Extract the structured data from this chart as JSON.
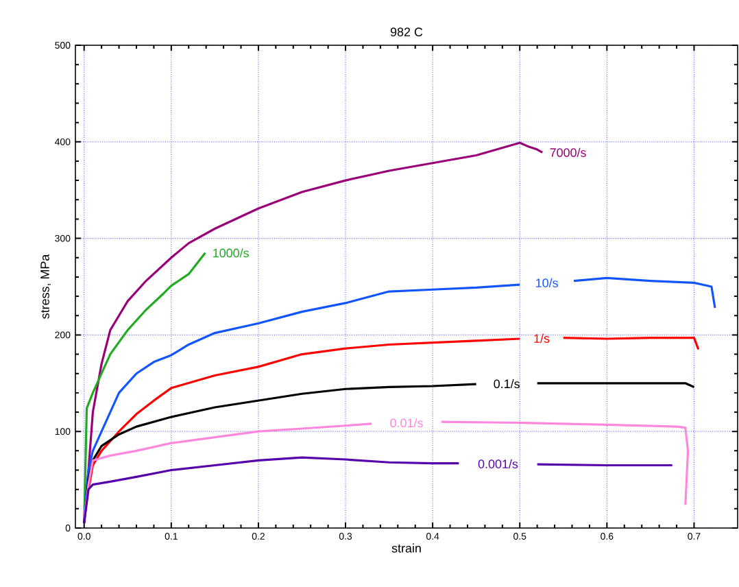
{
  "chart_data": {
    "type": "line",
    "title": "982 C",
    "xlabel": "strain",
    "ylabel": "stress, MPa",
    "xlim": [
      -0.01,
      0.75
    ],
    "ylim": [
      0,
      500
    ],
    "xticks": [
      {
        "value": 0,
        "label": "0.0"
      },
      0.1,
      0.2,
      0.3,
      0.4,
      0.5,
      0.6,
      0.7
    ],
    "yticks": [
      0,
      100,
      200,
      300,
      400,
      500
    ],
    "grid": true,
    "series": [
      {
        "name": "7000/s",
        "color": "#990077",
        "x": [
          0,
          0.005,
          0.01,
          0.02,
          0.03,
          0.04,
          0.05,
          0.07,
          0.1,
          0.12,
          0.15,
          0.2,
          0.25,
          0.3,
          0.35,
          0.4,
          0.45,
          0.5,
          0.51,
          0.52,
          0.526
        ],
        "values": [
          10,
          60,
          120,
          170,
          205,
          220,
          235,
          255,
          280,
          295,
          310,
          331,
          348,
          360,
          370,
          378,
          386,
          399,
          395,
          392,
          389
        ]
      },
      {
        "name": "1000/s",
        "color": "#22aa22",
        "x": [
          0,
          0.003,
          0.01,
          0.02,
          0.03,
          0.05,
          0.07,
          0.09,
          0.1,
          0.12,
          0.139
        ],
        "values": [
          5,
          124,
          140,
          160,
          180,
          205,
          225,
          242,
          251,
          263,
          285
        ]
      },
      {
        "name": "10/s",
        "color": "#1155ff",
        "x": [
          0,
          0.005,
          0.01,
          0.02,
          0.04,
          0.06,
          0.08,
          0.1,
          0.12,
          0.15,
          0.2,
          0.25,
          0.3,
          0.35,
          0.4,
          0.45,
          0.5,
          0.53,
          0.562,
          0.6,
          0.65,
          0.7,
          0.72,
          0.724
        ],
        "values": [
          10,
          60,
          80,
          100,
          140,
          160,
          172,
          179,
          190,
          202,
          212,
          224,
          233,
          245,
          247,
          249,
          252,
          null,
          256,
          259,
          256,
          254,
          250,
          228
        ]
      },
      {
        "name": "1/s",
        "color": "#ff0000",
        "x": [
          0.005,
          0.01,
          0.02,
          0.04,
          0.06,
          0.08,
          0.1,
          0.15,
          0.2,
          0.25,
          0.3,
          0.35,
          0.4,
          0.45,
          0.5,
          0.525,
          0.55,
          0.6,
          0.65,
          0.7,
          0.705
        ],
        "values": [
          40,
          65,
          80,
          100,
          118,
          132,
          145,
          158,
          167,
          180,
          186,
          190,
          192,
          194,
          196,
          null,
          197,
          196,
          197,
          197,
          185
        ]
      },
      {
        "name": "0.1/s",
        "color": "#000000",
        "x": [
          0,
          0.005,
          0.01,
          0.02,
          0.04,
          0.06,
          0.08,
          0.1,
          0.15,
          0.2,
          0.25,
          0.3,
          0.35,
          0.4,
          0.45,
          0.49,
          0.52,
          0.6,
          0.65,
          0.69,
          0.7
        ],
        "values": [
          5,
          50,
          70,
          85,
          97,
          105,
          110,
          115,
          125,
          132,
          139,
          144,
          146,
          147,
          149,
          null,
          150,
          150,
          150,
          150,
          146
        ]
      },
      {
        "name": "0.01/s",
        "color": "#ff88dd",
        "x": [
          0,
          0.005,
          0.01,
          0.03,
          0.06,
          0.1,
          0.15,
          0.2,
          0.25,
          0.3,
          0.33,
          0.37,
          0.41,
          0.5,
          0.6,
          0.68,
          0.69,
          0.693,
          0.69
        ],
        "values": [
          10,
          45,
          70,
          75,
          80,
          88,
          94,
          100,
          103,
          106,
          108,
          null,
          110,
          109,
          107,
          105,
          104,
          80,
          24
        ]
      },
      {
        "name": "0.001/s",
        "color": "#5500aa",
        "x": [
          0,
          0.005,
          0.01,
          0.03,
          0.06,
          0.1,
          0.15,
          0.2,
          0.25,
          0.3,
          0.35,
          0.4,
          0.43,
          0.475,
          0.52,
          0.6,
          0.675
        ],
        "values": [
          5,
          40,
          45,
          48,
          53,
          60,
          65,
          70,
          73,
          71,
          68,
          67,
          67,
          null,
          66,
          65,
          65
        ]
      }
    ]
  }
}
